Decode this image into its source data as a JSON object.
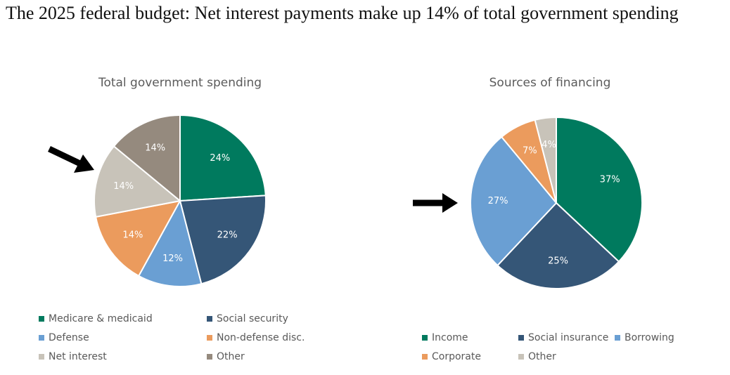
{
  "title": "The 2025 federal budget: Net interest payments make up 14% of  total government spending",
  "chart_data": [
    {
      "type": "pie",
      "title": "Total government spending",
      "slices": [
        {
          "label": "Medicare & medicaid",
          "value": 24,
          "value_label": "24%",
          "color": "#007a5e"
        },
        {
          "label": "Social security",
          "value": 22,
          "value_label": "22%",
          "color": "#355677"
        },
        {
          "label": "Defense",
          "value": 12,
          "value_label": "12%",
          "color": "#6a9fd3"
        },
        {
          "label": "Non-defense disc.",
          "value": 14,
          "value_label": "14%",
          "color": "#eb9b5d"
        },
        {
          "label": "Net interest",
          "value": 14,
          "value_label": "14%",
          "color": "#c8c3b9"
        },
        {
          "label": "Other",
          "value": 14,
          "value_label": "14%",
          "color": "#958a7e"
        }
      ],
      "annotation": "arrow pointing to Net interest slice"
    },
    {
      "type": "pie",
      "title": "Sources of financing",
      "slices": [
        {
          "label": "Income",
          "value": 37,
          "value_label": "37%",
          "color": "#007a5e"
        },
        {
          "label": "Social insurance",
          "value": 25,
          "value_label": "25%",
          "color": "#355677"
        },
        {
          "label": "Borrowing",
          "value": 27,
          "value_label": "27%",
          "color": "#6a9fd3"
        },
        {
          "label": "Corporate",
          "value": 7,
          "value_label": "7%",
          "color": "#eb9b5d"
        },
        {
          "label": "Other",
          "value": 4,
          "value_label": "4%",
          "color": "#c8c3b9"
        }
      ],
      "annotation": "arrow pointing to Borrowing slice"
    }
  ]
}
